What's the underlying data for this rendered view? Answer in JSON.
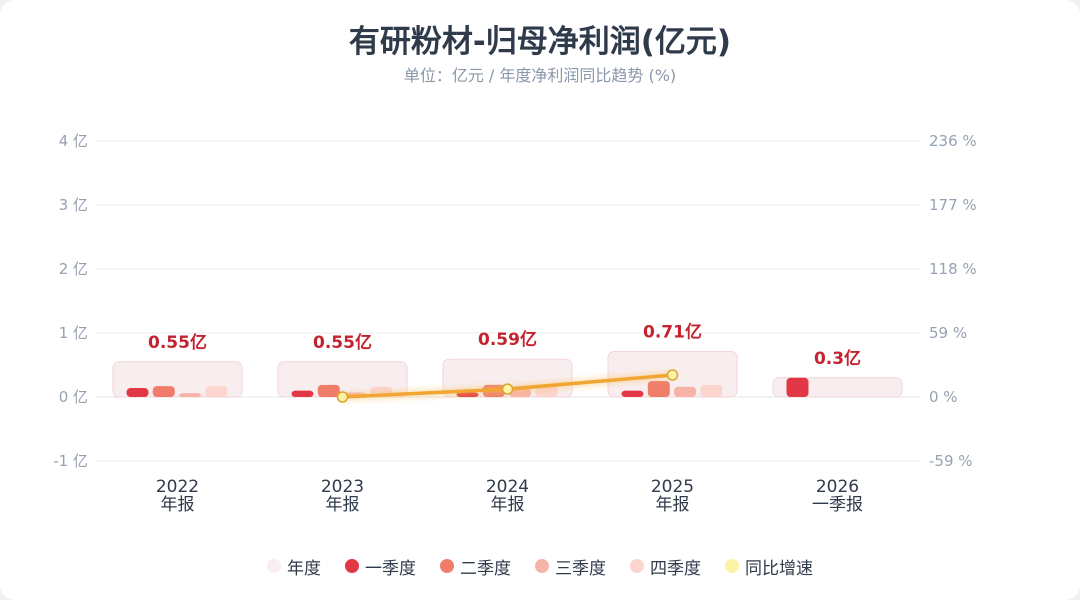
{
  "header": {
    "title": "有研粉材-归母净利润(亿元)",
    "subtitle": "单位：亿元 / 年度净利润同比趋势 (%)"
  },
  "chart_data": {
    "type": "bar",
    "categories": [
      [
        "2022",
        "年报"
      ],
      [
        "2023",
        "年报"
      ],
      [
        "2024",
        "年报"
      ],
      [
        "2025",
        "年报"
      ],
      [
        "2026",
        "一季报"
      ]
    ],
    "annual_labels": [
      "0.55亿",
      "0.55亿",
      "0.59亿",
      "0.71亿",
      "0.3亿"
    ],
    "series": [
      {
        "name": "年度",
        "color": "#f8eef0",
        "values": [
          0.55,
          0.55,
          0.59,
          0.71,
          0.3
        ]
      },
      {
        "name": "一季度",
        "color": "#e23744",
        "values": [
          0.14,
          0.1,
          0.07,
          0.1,
          0.3
        ]
      },
      {
        "name": "二季度",
        "color": "#f07d6a",
        "values": [
          0.17,
          0.19,
          0.19,
          0.25,
          null
        ]
      },
      {
        "name": "三季度",
        "color": "#f8b3a8",
        "values": [
          0.06,
          0.07,
          0.14,
          0.16,
          null
        ]
      },
      {
        "name": "四季度",
        "color": "#fcd5cf",
        "values": [
          0.17,
          0.16,
          0.2,
          0.19,
          null
        ]
      }
    ],
    "line_series": {
      "name": "同比增速",
      "color": "#f2a533",
      "marker_color": "#fdf3a6",
      "values": [
        null,
        0.0,
        7.3,
        20.3,
        null
      ]
    },
    "y_left": {
      "ticks": [
        4,
        3,
        2,
        1,
        0,
        -1
      ],
      "tick_labels": [
        "4 亿",
        "3 亿",
        "2 亿",
        "1 亿",
        "0 亿",
        "-1 亿"
      ],
      "range": [
        -1,
        4
      ]
    },
    "y_right": {
      "ticks": [
        236,
        177,
        118,
        59,
        0,
        -59
      ],
      "tick_labels": [
        "236 %",
        "177 %",
        "118 %",
        "59 %",
        "0 %",
        "-59 %"
      ],
      "range": [
        -59,
        236
      ]
    },
    "grid": true,
    "legend_position": "bottom-center"
  },
  "legend": [
    {
      "label": "年度",
      "color": "#f8eef0"
    },
    {
      "label": "一季度",
      "color": "#e23744"
    },
    {
      "label": "二季度",
      "color": "#f07d6a"
    },
    {
      "label": "三季度",
      "color": "#f8b3a8"
    },
    {
      "label": "四季度",
      "color": "#fcd5cf"
    },
    {
      "label": "同比增速",
      "color": "#fdf3a6"
    }
  ]
}
